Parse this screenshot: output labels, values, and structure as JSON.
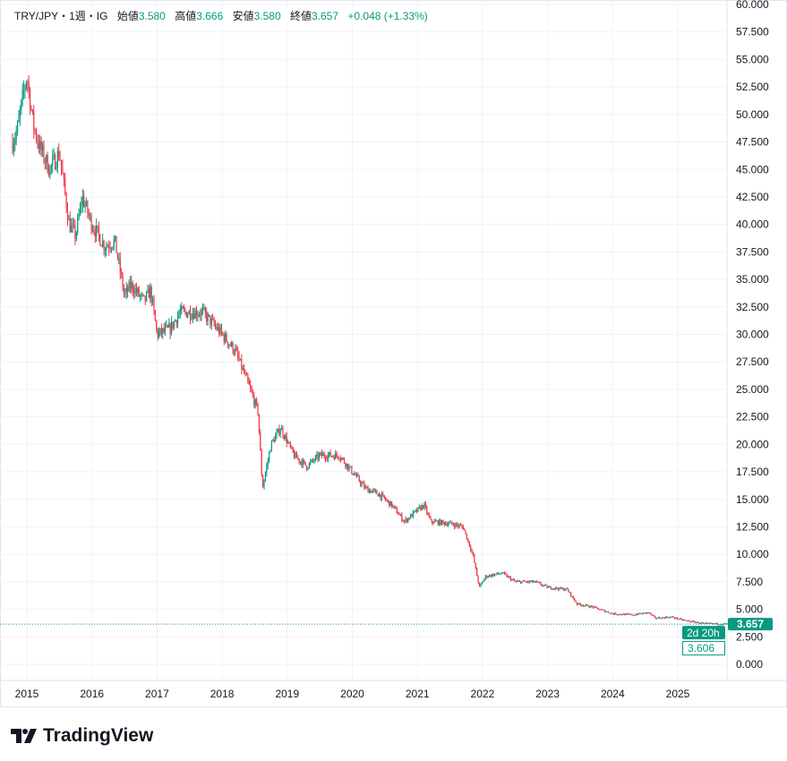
{
  "header": {
    "symbol": "TRY/JPY・1週・IG",
    "open_label": "始値",
    "open": "3.580",
    "high_label": "高値",
    "high": "3.666",
    "low_label": "安値",
    "low": "3.580",
    "close_label": "終値",
    "close": "3.657",
    "change": "+0.048 (+1.33%)"
  },
  "price_label": {
    "last": "3.657",
    "countdown": "2d 20h",
    "secondary": "3.606"
  },
  "logo": "TradingView",
  "colors": {
    "up": "#089981",
    "down": "#f23645",
    "grid": "#f0f3fa"
  },
  "chart_data": {
    "type": "candlestick",
    "title": "TRY/JPY weekly",
    "ylim": [
      0,
      60
    ],
    "y_ticks": [
      "0.000",
      "2.500",
      "5.000",
      "7.500",
      "10.000",
      "12.500",
      "15.000",
      "17.500",
      "20.000",
      "22.500",
      "25.000",
      "27.500",
      "30.000",
      "32.500",
      "35.000",
      "37.500",
      "40.000",
      "42.500",
      "45.000",
      "47.500",
      "50.000",
      "52.500",
      "55.000",
      "57.500",
      "60.000"
    ],
    "x_ticks": [
      "2015",
      "2016",
      "2017",
      "2018",
      "2019",
      "2020",
      "2021",
      "2022",
      "2023",
      "2024",
      "2025"
    ],
    "xlim": [
      2014.75,
      2025.85
    ],
    "anchors": [
      [
        2014.78,
        47.5
      ],
      [
        2014.85,
        48.5
      ],
      [
        2014.95,
        52
      ],
      [
        2015.0,
        53.5
      ],
      [
        2015.1,
        49
      ],
      [
        2015.2,
        47
      ],
      [
        2015.35,
        45
      ],
      [
        2015.5,
        46.5
      ],
      [
        2015.65,
        40
      ],
      [
        2015.75,
        39
      ],
      [
        2015.85,
        42.5
      ],
      [
        2016.0,
        40
      ],
      [
        2016.2,
        38
      ],
      [
        2016.35,
        38.5
      ],
      [
        2016.5,
        33.5
      ],
      [
        2016.6,
        34.5
      ],
      [
        2016.8,
        33
      ],
      [
        2016.9,
        34
      ],
      [
        2017.0,
        30
      ],
      [
        2017.2,
        30.5
      ],
      [
        2017.35,
        32
      ],
      [
        2017.7,
        32
      ],
      [
        2017.85,
        31
      ],
      [
        2018.0,
        30
      ],
      [
        2018.2,
        28.5
      ],
      [
        2018.4,
        25.5
      ],
      [
        2018.55,
        23
      ],
      [
        2018.62,
        16
      ],
      [
        2018.75,
        20
      ],
      [
        2018.9,
        21.5
      ],
      [
        2019.1,
        19
      ],
      [
        2019.3,
        18
      ],
      [
        2019.5,
        19
      ],
      [
        2019.8,
        19
      ],
      [
        2020.0,
        17.5
      ],
      [
        2020.2,
        16
      ],
      [
        2020.4,
        15.5
      ],
      [
        2020.6,
        14.5
      ],
      [
        2020.8,
        13
      ],
      [
        2020.9,
        13.5
      ],
      [
        2021.1,
        14.5
      ],
      [
        2021.2,
        13
      ],
      [
        2021.5,
        12.8
      ],
      [
        2021.7,
        12.5
      ],
      [
        2021.85,
        10
      ],
      [
        2021.95,
        7
      ],
      [
        2022.05,
        8
      ],
      [
        2022.3,
        8.3
      ],
      [
        2022.5,
        7.5
      ],
      [
        2022.8,
        7.5
      ],
      [
        2023.0,
        7
      ],
      [
        2023.3,
        6.8
      ],
      [
        2023.45,
        5.5
      ],
      [
        2023.7,
        5.2
      ],
      [
        2024.0,
        4.6
      ],
      [
        2024.3,
        4.5
      ],
      [
        2024.55,
        4.7
      ],
      [
        2024.65,
        4.2
      ],
      [
        2024.9,
        4.3
      ],
      [
        2025.1,
        4.0
      ],
      [
        2025.4,
        3.7
      ],
      [
        2025.8,
        3.657
      ]
    ],
    "last_price": 3.657
  }
}
